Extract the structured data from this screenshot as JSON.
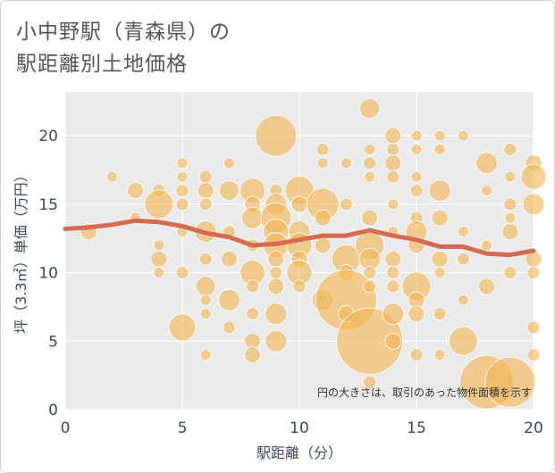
{
  "title_line1": "小中野駅（青森県）の",
  "title_line2": "駅距離別土地価格",
  "chart_data": {
    "type": "scatter",
    "xlabel": "駅距離（分）",
    "ylabel": "坪（3.3㎡）単価（万円）",
    "xlim": [
      0,
      20
    ],
    "ylim": [
      0,
      23.2
    ],
    "xticks": [
      0,
      5,
      10,
      15,
      20
    ],
    "yticks": [
      0,
      5,
      10,
      15,
      20
    ],
    "note": "円の大きさは、取引のあった物件面積を示す",
    "bubble_color": "#f0b450",
    "trend_color": "#d46a50",
    "bubbles": [
      {
        "x": 1,
        "y": 13,
        "r": 9
      },
      {
        "x": 2,
        "y": 17,
        "r": 6
      },
      {
        "x": 3,
        "y": 16,
        "r": 9
      },
      {
        "x": 3,
        "y": 14,
        "r": 6
      },
      {
        "x": 4,
        "y": 16,
        "r": 7
      },
      {
        "x": 4,
        "y": 15,
        "r": 16
      },
      {
        "x": 4,
        "y": 12,
        "r": 6
      },
      {
        "x": 4,
        "y": 11,
        "r": 9
      },
      {
        "x": 4,
        "y": 10,
        "r": 6
      },
      {
        "x": 5,
        "y": 18,
        "r": 6
      },
      {
        "x": 5,
        "y": 17,
        "r": 6
      },
      {
        "x": 5,
        "y": 16,
        "r": 7
      },
      {
        "x": 5,
        "y": 15,
        "r": 7
      },
      {
        "x": 5,
        "y": 13,
        "r": 6
      },
      {
        "x": 5,
        "y": 10,
        "r": 7
      },
      {
        "x": 5,
        "y": 6,
        "r": 15
      },
      {
        "x": 6,
        "y": 17,
        "r": 7
      },
      {
        "x": 6,
        "y": 16,
        "r": 9
      },
      {
        "x": 6,
        "y": 15,
        "r": 7
      },
      {
        "x": 6,
        "y": 13,
        "r": 12
      },
      {
        "x": 6,
        "y": 11,
        "r": 7
      },
      {
        "x": 6,
        "y": 9,
        "r": 11
      },
      {
        "x": 6,
        "y": 8,
        "r": 6
      },
      {
        "x": 6,
        "y": 7,
        "r": 6
      },
      {
        "x": 6,
        "y": 4,
        "r": 6
      },
      {
        "x": 7,
        "y": 18,
        "r": 6
      },
      {
        "x": 7,
        "y": 16,
        "r": 11
      },
      {
        "x": 7,
        "y": 13,
        "r": 7
      },
      {
        "x": 7,
        "y": 11,
        "r": 9
      },
      {
        "x": 7,
        "y": 8,
        "r": 12
      },
      {
        "x": 7,
        "y": 6,
        "r": 7
      },
      {
        "x": 8,
        "y": 16,
        "r": 14
      },
      {
        "x": 8,
        "y": 15,
        "r": 9
      },
      {
        "x": 8,
        "y": 14,
        "r": 12
      },
      {
        "x": 8,
        "y": 12,
        "r": 7
      },
      {
        "x": 8,
        "y": 10,
        "r": 14
      },
      {
        "x": 8,
        "y": 9,
        "r": 7
      },
      {
        "x": 8,
        "y": 7,
        "r": 7
      },
      {
        "x": 8,
        "y": 5,
        "r": 9
      },
      {
        "x": 8,
        "y": 4,
        "r": 9
      },
      {
        "x": 9,
        "y": 20,
        "r": 23
      },
      {
        "x": 9,
        "y": 16,
        "r": 7
      },
      {
        "x": 9,
        "y": 15,
        "r": 12
      },
      {
        "x": 9,
        "y": 14,
        "r": 17
      },
      {
        "x": 9,
        "y": 13,
        "r": 14
      },
      {
        "x": 9,
        "y": 12,
        "r": 14
      },
      {
        "x": 9,
        "y": 11,
        "r": 9
      },
      {
        "x": 9,
        "y": 10,
        "r": 7
      },
      {
        "x": 9,
        "y": 9,
        "r": 9
      },
      {
        "x": 9,
        "y": 7,
        "r": 12
      },
      {
        "x": 9,
        "y": 5,
        "r": 12
      },
      {
        "x": 10,
        "y": 16,
        "r": 16
      },
      {
        "x": 10,
        "y": 15,
        "r": 9
      },
      {
        "x": 10,
        "y": 13,
        "r": 12
      },
      {
        "x": 10,
        "y": 12,
        "r": 14
      },
      {
        "x": 10,
        "y": 11,
        "r": 9
      },
      {
        "x": 10,
        "y": 10,
        "r": 14
      },
      {
        "x": 10,
        "y": 9,
        "r": 7
      },
      {
        "x": 11,
        "y": 19,
        "r": 7
      },
      {
        "x": 11,
        "y": 18,
        "r": 6
      },
      {
        "x": 11,
        "y": 15,
        "r": 18
      },
      {
        "x": 11,
        "y": 14,
        "r": 9
      },
      {
        "x": 11,
        "y": 12,
        "r": 9
      },
      {
        "x": 11,
        "y": 8,
        "r": 12
      },
      {
        "x": 12,
        "y": 18,
        "r": 6
      },
      {
        "x": 12,
        "y": 15,
        "r": 7
      },
      {
        "x": 12,
        "y": 11,
        "r": 16
      },
      {
        "x": 12,
        "y": 10,
        "r": 9
      },
      {
        "x": 12,
        "y": 8,
        "r": 34
      },
      {
        "x": 12,
        "y": 7,
        "r": 9
      },
      {
        "x": 13,
        "y": 22,
        "r": 11
      },
      {
        "x": 13,
        "y": 19,
        "r": 6
      },
      {
        "x": 13,
        "y": 18,
        "r": 7
      },
      {
        "x": 13,
        "y": 17,
        "r": 6
      },
      {
        "x": 13,
        "y": 14,
        "r": 9
      },
      {
        "x": 13,
        "y": 12,
        "r": 16
      },
      {
        "x": 13,
        "y": 11,
        "r": 12
      },
      {
        "x": 13,
        "y": 10,
        "r": 7
      },
      {
        "x": 13,
        "y": 9,
        "r": 7
      },
      {
        "x": 13,
        "y": 5,
        "r": 37
      },
      {
        "x": 13,
        "y": 2,
        "r": 7
      },
      {
        "x": 14,
        "y": 20,
        "r": 9
      },
      {
        "x": 14,
        "y": 19,
        "r": 7
      },
      {
        "x": 14,
        "y": 18,
        "r": 9
      },
      {
        "x": 14,
        "y": 17,
        "r": 7
      },
      {
        "x": 14,
        "y": 15,
        "r": 6
      },
      {
        "x": 14,
        "y": 13,
        "r": 6
      },
      {
        "x": 14,
        "y": 11,
        "r": 9
      },
      {
        "x": 14,
        "y": 10,
        "r": 7
      },
      {
        "x": 14,
        "y": 9,
        "r": 7
      },
      {
        "x": 14,
        "y": 7,
        "r": 12
      },
      {
        "x": 14,
        "y": 5,
        "r": 9
      },
      {
        "x": 15,
        "y": 20,
        "r": 6
      },
      {
        "x": 15,
        "y": 19,
        "r": 6
      },
      {
        "x": 15,
        "y": 17,
        "r": 6
      },
      {
        "x": 15,
        "y": 16,
        "r": 7
      },
      {
        "x": 15,
        "y": 14,
        "r": 7
      },
      {
        "x": 15,
        "y": 13,
        "r": 12
      },
      {
        "x": 15,
        "y": 12,
        "r": 9
      },
      {
        "x": 15,
        "y": 9,
        "r": 16
      },
      {
        "x": 15,
        "y": 8,
        "r": 9
      },
      {
        "x": 15,
        "y": 7,
        "r": 9
      },
      {
        "x": 15,
        "y": 4,
        "r": 7
      },
      {
        "x": 16,
        "y": 20,
        "r": 6
      },
      {
        "x": 16,
        "y": 19,
        "r": 6
      },
      {
        "x": 16,
        "y": 16,
        "r": 12
      },
      {
        "x": 16,
        "y": 14,
        "r": 9
      },
      {
        "x": 16,
        "y": 11,
        "r": 9
      },
      {
        "x": 16,
        "y": 10,
        "r": 6
      },
      {
        "x": 16,
        "y": 7,
        "r": 7
      },
      {
        "x": 16,
        "y": 4,
        "r": 6
      },
      {
        "x": 17,
        "y": 20,
        "r": 6
      },
      {
        "x": 17,
        "y": 13,
        "r": 6
      },
      {
        "x": 17,
        "y": 11,
        "r": 7
      },
      {
        "x": 17,
        "y": 8,
        "r": 6
      },
      {
        "x": 17,
        "y": 5,
        "r": 16
      },
      {
        "x": 18,
        "y": 18,
        "r": 12
      },
      {
        "x": 18,
        "y": 16,
        "r": 6
      },
      {
        "x": 18,
        "y": 12,
        "r": 6
      },
      {
        "x": 18,
        "y": 9,
        "r": 9
      },
      {
        "x": 18,
        "y": 2,
        "r": 30
      },
      {
        "x": 19,
        "y": 19,
        "r": 7
      },
      {
        "x": 19,
        "y": 17,
        "r": 6
      },
      {
        "x": 19,
        "y": 15,
        "r": 7
      },
      {
        "x": 19,
        "y": 14,
        "r": 6
      },
      {
        "x": 19,
        "y": 13,
        "r": 9
      },
      {
        "x": 19,
        "y": 10,
        "r": 7
      },
      {
        "x": 19,
        "y": 2,
        "r": 28
      },
      {
        "x": 20,
        "y": 18,
        "r": 9
      },
      {
        "x": 20,
        "y": 17,
        "r": 14
      },
      {
        "x": 20,
        "y": 15,
        "r": 12
      },
      {
        "x": 20,
        "y": 11,
        "r": 9
      },
      {
        "x": 20,
        "y": 10,
        "r": 7
      },
      {
        "x": 20,
        "y": 6,
        "r": 7
      },
      {
        "x": 20,
        "y": 4,
        "r": 7
      }
    ],
    "trend": [
      {
        "x": 0,
        "y": 13.2
      },
      {
        "x": 1,
        "y": 13.3
      },
      {
        "x": 2,
        "y": 13.5
      },
      {
        "x": 3,
        "y": 13.8
      },
      {
        "x": 4,
        "y": 13.7
      },
      {
        "x": 5,
        "y": 13.4
      },
      {
        "x": 6,
        "y": 12.9
      },
      {
        "x": 7,
        "y": 12.6
      },
      {
        "x": 8,
        "y": 12.0
      },
      {
        "x": 9,
        "y": 12.1
      },
      {
        "x": 10,
        "y": 12.4
      },
      {
        "x": 11,
        "y": 12.7
      },
      {
        "x": 12,
        "y": 12.7
      },
      {
        "x": 13,
        "y": 13.1
      },
      {
        "x": 14,
        "y": 12.7
      },
      {
        "x": 15,
        "y": 12.4
      },
      {
        "x": 16,
        "y": 11.9
      },
      {
        "x": 17,
        "y": 11.9
      },
      {
        "x": 18,
        "y": 11.4
      },
      {
        "x": 19,
        "y": 11.3
      },
      {
        "x": 20,
        "y": 11.6
      }
    ]
  }
}
